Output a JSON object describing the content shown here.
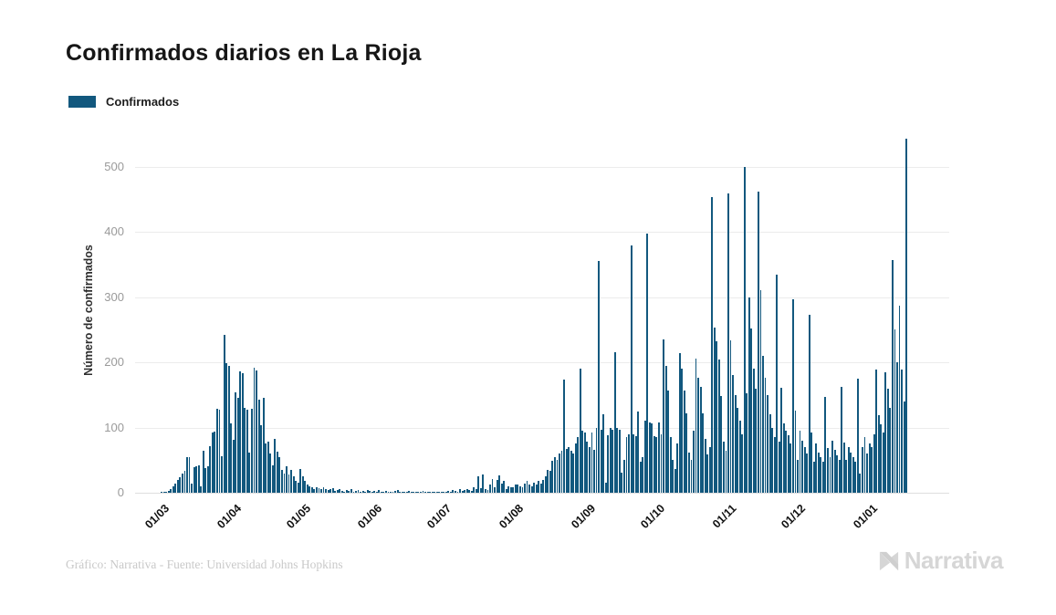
{
  "header": {
    "title": "Confirmados diarios en La Rioja"
  },
  "legend": {
    "items": [
      {
        "label": "Confirmados",
        "color": "#12587e"
      }
    ]
  },
  "footer": {
    "source": "Gráfico: Narrativa - Fuente: Universidad Johns Hopkins",
    "brand": "Narrativa"
  },
  "icons": {
    "brand_mark": "narrativa-n-icon"
  },
  "colors": {
    "bar": "#12587e",
    "grid": "#ececec",
    "baseline": "#dedede",
    "ytick_text": "#9a9a9a",
    "xtick_text": "#111111",
    "title_text": "#161616",
    "muted_text": "#c9c9c9",
    "background": "#ffffff"
  },
  "chart_data": {
    "type": "bar",
    "title": "Confirmados diarios en La Rioja",
    "xlabel": "",
    "ylabel": "Número de confirmados",
    "legend_position": "top-left",
    "grid": "horizontal",
    "ylim": [
      0,
      560
    ],
    "yticks": [
      0,
      100,
      200,
      300,
      400,
      500
    ],
    "n_slots": 352,
    "xticks": [
      {
        "label": "01/03",
        "slot": 10
      },
      {
        "label": "01/04",
        "slot": 41
      },
      {
        "label": "01/05",
        "slot": 71
      },
      {
        "label": "01/06",
        "slot": 102
      },
      {
        "label": "01/07",
        "slot": 132
      },
      {
        "label": "01/08",
        "slot": 163
      },
      {
        "label": "01/09",
        "slot": 194
      },
      {
        "label": "01/10",
        "slot": 224
      },
      {
        "label": "01/11",
        "slot": 255
      },
      {
        "label": "01/12",
        "slot": 285
      },
      {
        "label": "01/01",
        "slot": 316
      }
    ],
    "series_name": "Confirmados",
    "values": [
      0,
      0,
      0,
      0,
      0,
      0,
      0,
      0,
      0,
      0,
      0,
      1,
      1,
      2,
      3,
      6,
      10,
      14,
      20,
      24,
      29,
      34,
      55,
      54,
      14,
      39,
      40,
      42,
      10,
      65,
      38,
      41,
      71,
      93,
      94,
      129,
      128,
      56,
      242,
      199,
      195,
      107,
      81,
      154,
      145,
      186,
      183,
      130,
      128,
      61,
      129,
      192,
      188,
      143,
      104,
      146,
      75,
      78,
      60,
      42,
      83,
      63,
      55,
      35,
      30,
      40,
      28,
      35,
      25,
      18,
      15,
      37,
      25,
      18,
      12,
      10,
      8,
      6,
      9,
      7,
      5,
      8,
      6,
      4,
      5,
      7,
      3,
      4,
      6,
      3,
      2,
      4,
      3,
      5,
      2,
      3,
      4,
      2,
      3,
      2,
      4,
      3,
      2,
      3,
      2,
      4,
      1,
      2,
      3,
      2,
      1,
      2,
      3,
      4,
      2,
      1,
      2,
      1,
      3,
      2,
      1,
      2,
      1,
      2,
      3,
      1,
      2,
      1,
      1,
      2,
      1,
      2,
      1,
      2,
      1,
      3,
      2,
      4,
      3,
      2,
      5,
      3,
      4,
      6,
      4,
      3,
      8,
      5,
      25,
      7,
      28,
      5,
      4,
      12,
      21,
      8,
      20,
      26,
      14,
      18,
      6,
      10,
      8,
      9,
      12,
      13,
      10,
      8,
      14,
      18,
      12,
      10,
      15,
      12,
      18,
      14,
      20,
      25,
      35,
      33,
      49,
      54,
      51,
      60,
      65,
      173,
      67,
      70,
      65,
      60,
      75,
      85,
      190,
      95,
      93,
      79,
      70,
      92,
      66,
      99,
      355,
      96,
      120,
      15,
      88,
      100,
      96,
      215,
      99,
      96,
      31,
      50,
      85,
      90,
      379,
      89,
      87,
      124,
      47,
      54,
      110,
      398,
      108,
      106,
      87,
      85,
      108,
      90,
      235,
      194,
      157,
      85,
      50,
      36,
      75,
      214,
      190,
      157,
      122,
      61,
      50,
      95,
      206,
      176,
      162,
      122,
      82,
      59,
      70,
      454,
      253,
      232,
      204,
      148,
      78,
      64,
      459,
      234,
      180,
      150,
      130,
      110,
      90,
      500,
      152,
      300,
      252,
      190,
      160,
      462,
      311,
      210,
      177,
      150,
      120,
      100,
      85,
      335,
      79,
      161,
      107,
      95,
      88,
      75,
      297,
      126,
      51,
      95,
      80,
      70,
      60,
      273,
      93,
      47,
      75,
      62,
      55,
      48,
      147,
      68,
      54,
      80,
      66,
      58,
      50,
      163,
      77,
      51,
      70,
      62,
      55,
      48,
      175,
      30,
      70,
      85,
      60,
      75,
      70,
      90,
      189,
      119,
      105,
      92,
      185,
      160,
      130,
      357,
      250,
      200,
      287,
      189,
      140,
      543
    ]
  }
}
